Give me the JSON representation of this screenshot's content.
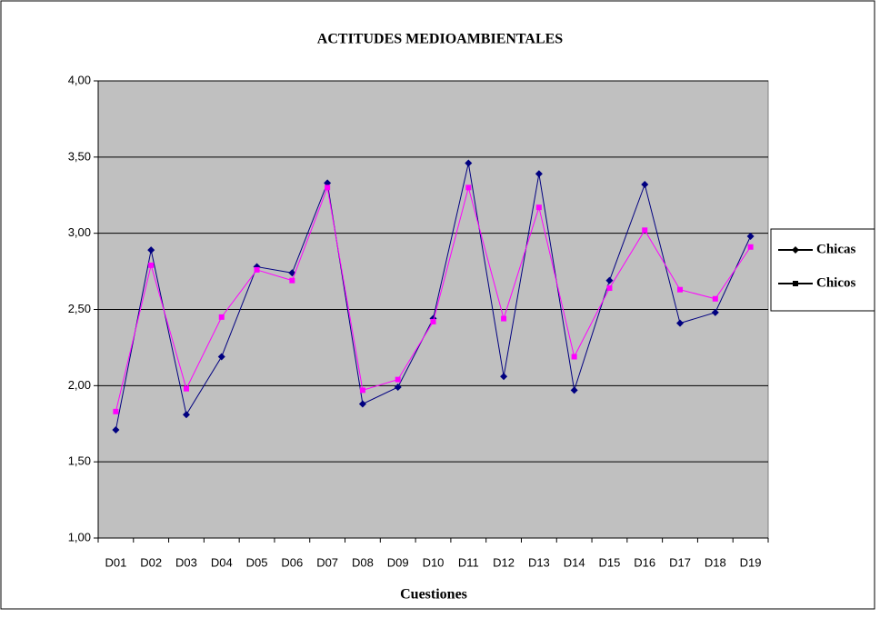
{
  "chart_data": {
    "type": "line",
    "title": "ACTITUDES MEDIOAMBIENTALES",
    "x_label": "Cuestiones",
    "categories": [
      "D01",
      "D02",
      "D03",
      "D04",
      "D05",
      "D06",
      "D07",
      "D08",
      "D09",
      "D10",
      "D11",
      "D12",
      "D13",
      "D14",
      "D15",
      "D16",
      "D17",
      "D18",
      "D19"
    ],
    "series": [
      {
        "name": "Chicas",
        "color": "#000080",
        "marker": "diamond",
        "values": [
          1.71,
          2.89,
          1.81,
          2.19,
          2.78,
          2.74,
          3.33,
          1.88,
          1.99,
          2.44,
          3.46,
          2.06,
          3.39,
          1.97,
          2.69,
          3.32,
          2.41,
          2.48,
          2.98
        ]
      },
      {
        "name": "Chicos",
        "color": "#ff00ff",
        "marker": "square",
        "values": [
          1.83,
          2.79,
          1.98,
          2.45,
          2.76,
          2.69,
          3.3,
          1.97,
          2.04,
          2.42,
          3.3,
          2.44,
          3.17,
          2.19,
          2.64,
          3.02,
          2.63,
          2.57,
          2.91
        ]
      }
    ],
    "ylim": [
      1,
      4
    ],
    "yticks": [
      {
        "value": 1,
        "label": "1,00"
      },
      {
        "value": 1.5,
        "label": "1,50"
      },
      {
        "value": 2,
        "label": "2,00"
      },
      {
        "value": 2.5,
        "label": "2,50"
      },
      {
        "value": 3,
        "label": "3,00"
      },
      {
        "value": 3.5,
        "label": "3,50"
      },
      {
        "value": 4,
        "label": "4,00"
      }
    ],
    "grid": true,
    "legend": "right"
  }
}
